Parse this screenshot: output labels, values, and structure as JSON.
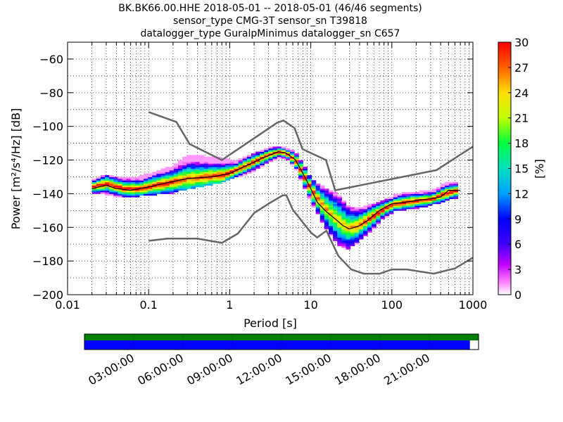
{
  "title": {
    "line1": "BK.BK66.00.HHE   2018-05-01 -- 2018-05-01  (46/46 segments)",
    "line2": "sensor_type CMG-3T sensor_sn T39818",
    "line3": "datalogger_type GuralpMinimus datalogger_sn C657"
  },
  "chart_data": {
    "type": "heatmap",
    "xlabel": "Period [s]",
    "ylabel": "Power [m²/s⁴/Hz] [dB]",
    "x_scale": "log",
    "xlim": [
      0.01,
      1000
    ],
    "ylim": [
      -200,
      -50
    ],
    "x_ticks": [
      {
        "value": 0.01,
        "label": "0.01"
      },
      {
        "value": 0.1,
        "label": "0.1"
      },
      {
        "value": 1,
        "label": "1"
      },
      {
        "value": 10,
        "label": "10"
      },
      {
        "value": 100,
        "label": "100"
      },
      {
        "value": 1000,
        "label": "1000"
      }
    ],
    "y_ticks": [
      {
        "value": -60,
        "label": "−60"
      },
      {
        "value": -80,
        "label": "−80"
      },
      {
        "value": -100,
        "label": "−100"
      },
      {
        "value": -120,
        "label": "−120"
      },
      {
        "value": -140,
        "label": "−140"
      },
      {
        "value": -160,
        "label": "−160"
      },
      {
        "value": -180,
        "label": "−180"
      },
      {
        "value": -200,
        "label": "−200"
      }
    ],
    "colorbar": {
      "label": "[%]",
      "range": [
        0,
        30
      ],
      "ticks": [
        {
          "value": 0,
          "label": "0"
        },
        {
          "value": 3,
          "label": "3"
        },
        {
          "value": 6,
          "label": "6"
        },
        {
          "value": 9,
          "label": "9"
        },
        {
          "value": 12,
          "label": "12"
        },
        {
          "value": 15,
          "label": "15"
        },
        {
          "value": 18,
          "label": "18"
        },
        {
          "value": 21,
          "label": "21"
        },
        {
          "value": 24,
          "label": "24"
        },
        {
          "value": 27,
          "label": "27"
        },
        {
          "value": 30,
          "label": "30"
        }
      ]
    },
    "grid": true,
    "noise_models": [
      {
        "points": [
          [
            0.1,
            -91.5
          ],
          [
            0.22,
            -97.4
          ],
          [
            0.32,
            -110.5
          ],
          [
            0.8,
            -120
          ],
          [
            3.8,
            -98
          ],
          [
            4.6,
            -96.5
          ],
          [
            6.3,
            -101
          ],
          [
            7.9,
            -113.5
          ],
          [
            15.4,
            -120
          ],
          [
            20,
            -138
          ],
          [
            354.8,
            -126
          ],
          [
            1000,
            -112
          ]
        ]
      },
      {
        "points": [
          [
            0.1,
            -168
          ],
          [
            0.17,
            -166.7
          ],
          [
            0.4,
            -166.7
          ],
          [
            0.8,
            -169.2
          ],
          [
            1.26,
            -163.7
          ],
          [
            2.0,
            -151.5
          ],
          [
            3.0,
            -146
          ],
          [
            4.5,
            -141
          ],
          [
            5.0,
            -141
          ],
          [
            6.0,
            -149.5
          ],
          [
            10.0,
            -163
          ],
          [
            12.0,
            -166
          ],
          [
            15.6,
            -162
          ],
          [
            21.9,
            -177
          ],
          [
            31.6,
            -185
          ],
          [
            45,
            -187.5
          ],
          [
            70.8,
            -187.5
          ],
          [
            100,
            -185
          ],
          [
            154,
            -185
          ],
          [
            328,
            -187.5
          ],
          [
            600,
            -184.4
          ],
          [
            1000,
            -178
          ]
        ]
      }
    ],
    "mode_curve": {
      "points": [
        [
          0.02,
          -137
        ],
        [
          0.03,
          -135
        ],
        [
          0.04,
          -137
        ],
        [
          0.06,
          -138
        ],
        [
          0.1,
          -136
        ],
        [
          0.15,
          -134
        ],
        [
          0.3,
          -131
        ],
        [
          0.6,
          -130
        ],
        [
          1,
          -128
        ],
        [
          1.5,
          -124
        ],
        [
          2.5,
          -119
        ],
        [
          4,
          -115
        ],
        [
          5,
          -116
        ],
        [
          6.5,
          -120
        ],
        [
          8,
          -128
        ],
        [
          10,
          -137
        ],
        [
          12,
          -145
        ],
        [
          15,
          -150
        ],
        [
          20,
          -155
        ],
        [
          25,
          -159
        ],
        [
          30,
          -161
        ],
        [
          40,
          -159
        ],
        [
          50,
          -156
        ],
        [
          70,
          -150
        ],
        [
          100,
          -146
        ],
        [
          150,
          -145
        ],
        [
          200,
          -144
        ],
        [
          300,
          -143
        ],
        [
          400,
          -142
        ],
        [
          500,
          -138
        ],
        [
          700,
          -138
        ]
      ]
    },
    "psd_band": [
      {
        "x": 0.02,
        "lo": -140,
        "hi": -132,
        "peak": -136
      },
      {
        "x": 0.03,
        "lo": -140,
        "hi": -129,
        "peak": -134
      },
      {
        "x": 0.05,
        "lo": -142,
        "hi": -131,
        "peak": -137
      },
      {
        "x": 0.08,
        "lo": -141,
        "hi": -130,
        "peak": -137
      },
      {
        "x": 0.12,
        "lo": -140,
        "hi": -127,
        "peak": -135
      },
      {
        "x": 0.2,
        "lo": -139,
        "hi": -124,
        "peak": -133
      },
      {
        "x": 0.3,
        "lo": -137,
        "hi": -117,
        "peak": -131
      },
      {
        "x": 0.5,
        "lo": -135,
        "hi": -118,
        "peak": -130
      },
      {
        "x": 0.8,
        "lo": -133,
        "hi": -119,
        "peak": -129
      },
      {
        "x": 1.2,
        "lo": -130,
        "hi": -121,
        "peak": -126
      },
      {
        "x": 2,
        "lo": -126,
        "hi": -116,
        "peak": -121
      },
      {
        "x": 3,
        "lo": -121,
        "hi": -113,
        "peak": -117
      },
      {
        "x": 4,
        "lo": -118,
        "hi": -112,
        "peak": -115
      },
      {
        "x": 5,
        "lo": -119,
        "hi": -113,
        "peak": -116
      },
      {
        "x": 6.5,
        "lo": -125,
        "hi": -116,
        "peak": -120
      },
      {
        "x": 8,
        "lo": -134,
        "hi": -122,
        "peak": -128
      },
      {
        "x": 10,
        "lo": -145,
        "hi": -131,
        "peak": -137
      },
      {
        "x": 13,
        "lo": -154,
        "hi": -135,
        "peak": -145
      },
      {
        "x": 17,
        "lo": -164,
        "hi": -138,
        "peak": -151
      },
      {
        "x": 22,
        "lo": -170,
        "hi": -141,
        "peak": -156
      },
      {
        "x": 28,
        "lo": -173,
        "hi": -147,
        "peak": -160
      },
      {
        "x": 35,
        "lo": -170,
        "hi": -149,
        "peak": -160
      },
      {
        "x": 45,
        "lo": -165,
        "hi": -148,
        "peak": -157
      },
      {
        "x": 60,
        "lo": -160,
        "hi": -146,
        "peak": -153
      },
      {
        "x": 80,
        "lo": -154,
        "hi": -144,
        "peak": -149
      },
      {
        "x": 110,
        "lo": -150,
        "hi": -141,
        "peak": -146
      },
      {
        "x": 150,
        "lo": -149,
        "hi": -139,
        "peak": -145
      },
      {
        "x": 220,
        "lo": -148,
        "hi": -139,
        "peak": -144
      },
      {
        "x": 320,
        "lo": -146,
        "hi": -138,
        "peak": -143
      },
      {
        "x": 450,
        "lo": -144,
        "hi": -134,
        "peak": -140
      },
      {
        "x": 650,
        "lo": -142,
        "hi": -133,
        "peak": -138
      }
    ]
  },
  "timeline": {
    "segments_color": "#008000",
    "coverage_color": "#0000ff",
    "coverage_fraction": 0.978,
    "labels": [
      "03:00:00",
      "06:00:00",
      "09:00:00",
      "12:00:00",
      "15:00:00",
      "18:00:00",
      "21:00:00"
    ]
  }
}
